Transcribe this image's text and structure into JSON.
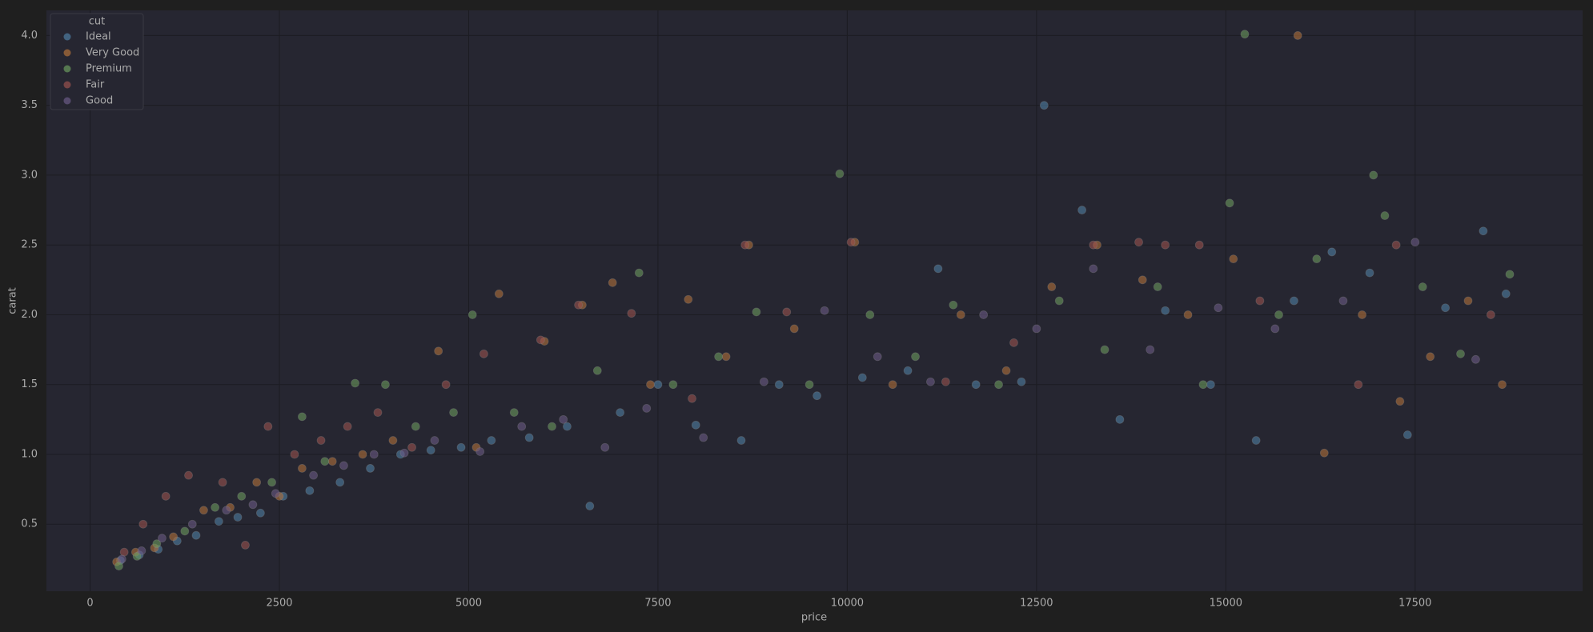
{
  "chart_data": {
    "type": "scatter",
    "x_label": "price",
    "y_label": "carat",
    "legend_title": "cut",
    "legend_position": "upper left",
    "grid": true,
    "xlim": [
      -577,
      19712
    ],
    "ylim": [
      0.02,
      4.18
    ],
    "xticks": [
      0,
      2500,
      5000,
      7500,
      10000,
      12500,
      15000,
      17500
    ],
    "yticks": [
      0.5,
      {
        "value": 1,
        "label": "1.0"
      },
      1.5,
      {
        "value": 2,
        "label": "2.0"
      },
      2.5,
      {
        "value": 3,
        "label": "3.0"
      },
      3.5,
      {
        "value": 4,
        "label": "4.0"
      }
    ],
    "series": [
      {
        "name": "Ideal",
        "color": "#4f7ea3",
        "x": [
          400,
          650,
          900,
          1150,
          1400,
          1700,
          1950,
          2250,
          2550,
          2900,
          3300,
          3700,
          4100,
          4500,
          4900,
          5300,
          5800,
          6300,
          6600,
          7000,
          7500,
          8000,
          8600,
          9100,
          9600,
          10200,
          10800,
          11200,
          11700,
          12300,
          12600,
          13100,
          13600,
          14200,
          14800,
          15400,
          15900,
          16400,
          16900,
          17400,
          17900,
          18400,
          18700
        ],
        "y": [
          0.24,
          0.28,
          0.32,
          0.38,
          0.42,
          0.52,
          0.55,
          0.58,
          0.7,
          0.74,
          0.8,
          0.9,
          1.0,
          1.03,
          1.05,
          1.1,
          1.12,
          1.2,
          0.63,
          1.3,
          1.5,
          1.21,
          1.1,
          1.5,
          1.42,
          1.55,
          1.6,
          2.33,
          1.5,
          1.52,
          3.5,
          2.75,
          1.25,
          2.03,
          1.5,
          1.1,
          2.1,
          2.45,
          2.3,
          1.14,
          2.05,
          2.6,
          2.15
        ]
      },
      {
        "name": "Very Good",
        "color": "#b0703a",
        "x": [
          350,
          600,
          850,
          1100,
          1500,
          1850,
          2200,
          2500,
          2800,
          3200,
          3600,
          4000,
          4600,
          5100,
          5400,
          6000,
          6500,
          6900,
          7400,
          7900,
          8400,
          8700,
          9300,
          10100,
          10600,
          11500,
          12100,
          12700,
          13300,
          13900,
          14500,
          15100,
          15950,
          16300,
          16800,
          17300,
          17700,
          18200,
          18650
        ],
        "y": [
          0.23,
          0.3,
          0.33,
          0.41,
          0.6,
          0.62,
          0.8,
          0.7,
          0.9,
          0.95,
          1.0,
          1.1,
          1.74,
          1.05,
          2.15,
          1.81,
          2.07,
          2.23,
          1.5,
          2.11,
          1.7,
          2.5,
          1.9,
          2.52,
          1.5,
          2.0,
          1.6,
          2.2,
          2.5,
          2.25,
          2.0,
          2.4,
          4.0,
          1.01,
          2.0,
          1.38,
          1.7,
          2.1,
          1.5
        ]
      },
      {
        "name": "Premium",
        "color": "#6a9a5e",
        "x": [
          380,
          620,
          880,
          1250,
          1650,
          2000,
          2400,
          2800,
          3100,
          3500,
          3900,
          4300,
          4800,
          5050,
          5600,
          6100,
          6700,
          7250,
          7700,
          8300,
          8800,
          9500,
          9900,
          10300,
          10900,
          11400,
          12000,
          12800,
          13400,
          14100,
          14700,
          15050,
          15250,
          15700,
          16200,
          16950,
          17100,
          17600,
          18100,
          18750
        ],
        "y": [
          0.2,
          0.27,
          0.36,
          0.45,
          0.62,
          0.7,
          0.8,
          1.27,
          0.95,
          1.51,
          1.5,
          1.2,
          1.3,
          2.0,
          1.3,
          1.2,
          1.6,
          2.3,
          1.5,
          1.7,
          2.02,
          1.5,
          3.01,
          2.0,
          1.7,
          2.07,
          1.5,
          2.1,
          1.75,
          2.2,
          1.5,
          2.8,
          4.01,
          2.0,
          2.4,
          3.0,
          2.71,
          2.2,
          1.72,
          2.29
        ]
      },
      {
        "name": "Fair",
        "color": "#99514f",
        "x": [
          450,
          700,
          1000,
          1300,
          1750,
          2050,
          2350,
          2700,
          3050,
          3400,
          3800,
          4250,
          4700,
          5200,
          5950,
          6450,
          7150,
          7950,
          8650,
          9200,
          10050,
          11300,
          12200,
          13250,
          13850,
          14200,
          14650,
          15450,
          16750,
          17250,
          18500
        ],
        "y": [
          0.3,
          0.5,
          0.7,
          0.85,
          0.8,
          0.35,
          1.2,
          1.0,
          1.1,
          1.2,
          1.3,
          1.05,
          1.5,
          1.72,
          1.82,
          2.07,
          2.01,
          1.4,
          2.5,
          2.02,
          2.52,
          1.52,
          1.8,
          2.5,
          2.52,
          2.5,
          2.5,
          2.1,
          1.5,
          2.5,
          2.0
        ]
      },
      {
        "name": "Good",
        "color": "#6a5a86",
        "x": [
          420,
          680,
          950,
          1350,
          1800,
          2150,
          2450,
          2950,
          3350,
          3750,
          4150,
          4550,
          5150,
          5700,
          6250,
          6800,
          7350,
          8100,
          8900,
          9700,
          10400,
          11100,
          11800,
          12500,
          13250,
          14000,
          14900,
          15650,
          16550,
          17500,
          18300
        ],
        "y": [
          0.25,
          0.31,
          0.4,
          0.5,
          0.6,
          0.64,
          0.72,
          0.85,
          0.92,
          1.0,
          1.01,
          1.1,
          1.02,
          1.2,
          1.25,
          1.05,
          1.33,
          1.12,
          1.52,
          2.03,
          1.7,
          1.52,
          2.0,
          1.9,
          2.33,
          1.75,
          2.05,
          1.9,
          2.1,
          2.52,
          1.68
        ]
      }
    ]
  }
}
